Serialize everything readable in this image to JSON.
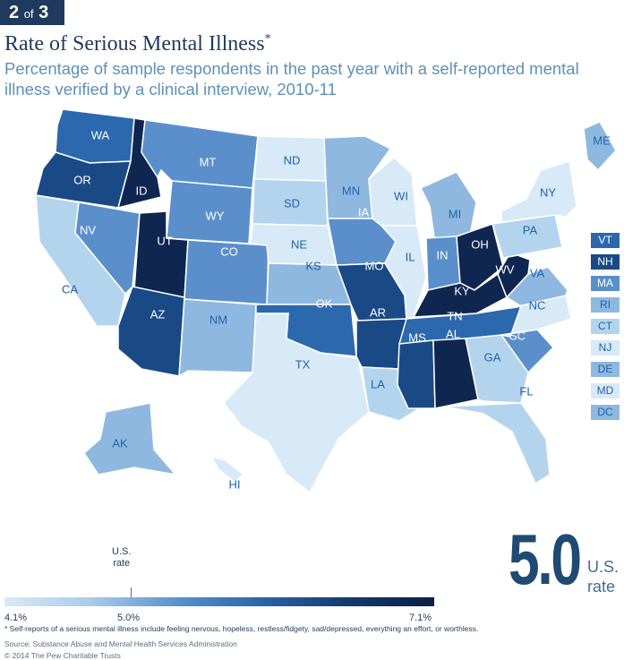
{
  "badge": {
    "number": "2",
    "of_text": "of",
    "total": "3"
  },
  "title": "Rate of Serious Mental Illness",
  "title_mark": "*",
  "subtitle": "Percentage of sample respondents in the past year with a self-reported mental illness verified by a clinical interview, 2010-11",
  "colors": {
    "lightest": "#d8e9f7",
    "light": "#b4d4ee",
    "mid_light": "#8fb8e0",
    "mid": "#5b8fcc",
    "mid_dark": "#2c68ae",
    "dark": "#1a4a86",
    "darkest": "#0e2650"
  },
  "states": [
    {
      "abbr": "WA",
      "level": "mid_dark"
    },
    {
      "abbr": "OR",
      "level": "dark"
    },
    {
      "abbr": "CA",
      "level": "light"
    },
    {
      "abbr": "ID",
      "level": "darkest"
    },
    {
      "abbr": "NV",
      "level": "mid"
    },
    {
      "abbr": "MT",
      "level": "mid"
    },
    {
      "abbr": "WY",
      "level": "mid"
    },
    {
      "abbr": "UT",
      "level": "darkest"
    },
    {
      "abbr": "CO",
      "level": "mid"
    },
    {
      "abbr": "AZ",
      "level": "dark"
    },
    {
      "abbr": "NM",
      "level": "mid_light"
    },
    {
      "abbr": "ND",
      "level": "lightest"
    },
    {
      "abbr": "SD",
      "level": "light"
    },
    {
      "abbr": "NE",
      "level": "lightest"
    },
    {
      "abbr": "KS",
      "level": "mid_light"
    },
    {
      "abbr": "OK",
      "level": "mid_dark"
    },
    {
      "abbr": "TX",
      "level": "lightest"
    },
    {
      "abbr": "MN",
      "level": "mid_light"
    },
    {
      "abbr": "IA",
      "level": "mid"
    },
    {
      "abbr": "MO",
      "level": "dark"
    },
    {
      "abbr": "AR",
      "level": "dark"
    },
    {
      "abbr": "LA",
      "level": "light"
    },
    {
      "abbr": "WI",
      "level": "lightest"
    },
    {
      "abbr": "IL",
      "level": "lightest"
    },
    {
      "abbr": "MI",
      "level": "mid_light"
    },
    {
      "abbr": "IN",
      "level": "mid"
    },
    {
      "abbr": "OH",
      "level": "darkest"
    },
    {
      "abbr": "KY",
      "level": "darkest"
    },
    {
      "abbr": "TN",
      "level": "mid_dark"
    },
    {
      "abbr": "MS",
      "level": "dark"
    },
    {
      "abbr": "AL",
      "level": "darkest"
    },
    {
      "abbr": "GA",
      "level": "light"
    },
    {
      "abbr": "FL",
      "level": "light"
    },
    {
      "abbr": "SC",
      "level": "mid"
    },
    {
      "abbr": "NC",
      "level": "lightest"
    },
    {
      "abbr": "VA",
      "level": "mid_light"
    },
    {
      "abbr": "WV",
      "level": "darkest"
    },
    {
      "abbr": "PA",
      "level": "light"
    },
    {
      "abbr": "NY",
      "level": "lightest"
    },
    {
      "abbr": "ME",
      "level": "mid_light"
    },
    {
      "abbr": "AK",
      "level": "mid_light"
    },
    {
      "abbr": "HI",
      "level": "lightest"
    }
  ],
  "legend_small_states": [
    {
      "abbr": "VT",
      "level": "mid_dark"
    },
    {
      "abbr": "NH",
      "level": "dark"
    },
    {
      "abbr": "MA",
      "level": "mid"
    },
    {
      "abbr": "RI",
      "level": "mid_light"
    },
    {
      "abbr": "CT",
      "level": "light"
    },
    {
      "abbr": "NJ",
      "level": "lightest"
    },
    {
      "abbr": "DE",
      "level": "mid_light"
    },
    {
      "abbr": "MD",
      "level": "lightest"
    },
    {
      "abbr": "DC",
      "level": "mid_light"
    }
  ],
  "scale": {
    "min_label": "4.1%",
    "mid_label": "5.0%",
    "max_label": "7.1%",
    "marker_line1": "U.S.",
    "marker_line2": "rate",
    "min": 4.1,
    "max": 7.1,
    "us": 5.0
  },
  "us_rate": {
    "value": "5.0",
    "label_line1": "U.S.",
    "label_line2": "rate"
  },
  "footnote": "* Self-reports of a serious mental illness include feeling nervous, hopeless, restless/fidgety, sad/depressed, everything an effort, or worthless.",
  "source": "Source: Substance Abuse and Mental Health Services Administration",
  "copyright": "© 2014 The Pew Charitable Trusts"
}
